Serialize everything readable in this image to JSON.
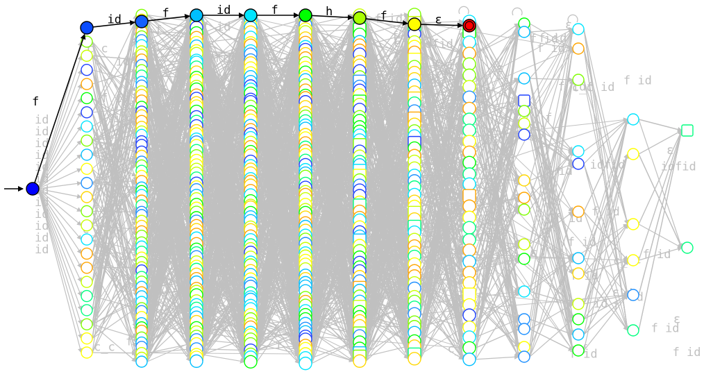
{
  "diagram": {
    "type": "automaton-graph",
    "background": "#ffffff",
    "colors": {
      "grey_edge": "#c0c0c0",
      "path_edge": "#000000",
      "start_fill": "#0000ff",
      "final_fill": "#ff0000",
      "palette": [
        "#1e40ff",
        "#1e90ff",
        "#00bfff",
        "#00e5ff",
        "#00ff7f",
        "#00ff00",
        "#7fff00",
        "#c8ff00",
        "#ffff00",
        "#ffd700",
        "#ffa500"
      ]
    },
    "highlighted_path": {
      "labels": [
        "f",
        "id",
        "f",
        "id",
        "f",
        "h",
        "f",
        "ε"
      ],
      "node_colors": [
        "#0000ff",
        "#0a4cff",
        "#1560ff",
        "#00bfff",
        "#00e5ff",
        "#00ff00",
        "#a8ff00",
        "#ffff00",
        "#ff0000"
      ]
    },
    "grey_labels": [
      "id",
      "f",
      "h",
      "c_c",
      "ε",
      "idfid",
      "f id",
      "f id"
    ]
  }
}
